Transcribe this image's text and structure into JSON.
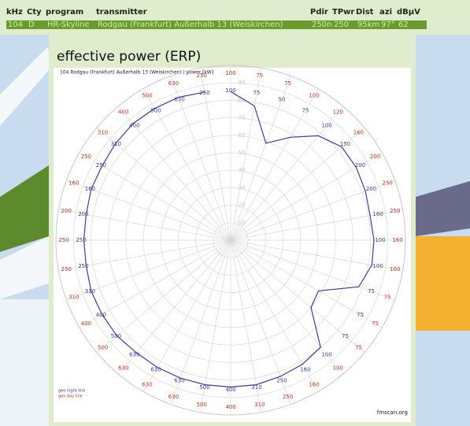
{
  "header": {
    "columns": [
      "kHz",
      "Cty",
      "program",
      "transmitter",
      "Pdir",
      "TPwr",
      "Dist",
      "azi",
      "dBµV"
    ],
    "row": [
      "104",
      "D",
      "HR-Skyline",
      "Rodgau (Frankfurt) Außerhalb 13 (Weiskirchen)",
      "250n",
      "250",
      "95km",
      "97°",
      "62"
    ]
  },
  "chart_data": {
    "type": "polar",
    "title": "effective power (ERP)",
    "subtitle": "104 Rodgau (Frankfurt) Außerhalb 13 (Weiskirchen) | power [kW]",
    "x": [
      0,
      10,
      20,
      30,
      40,
      50,
      60,
      70,
      80,
      90,
      100,
      110,
      120,
      130,
      140,
      150,
      160,
      170,
      180,
      190,
      200,
      210,
      220,
      230,
      240,
      250,
      260,
      270,
      280,
      290,
      300,
      310,
      320,
      330,
      340,
      350
    ],
    "series": [
      {
        "name": "geo night line",
        "color": "#3c3ca0",
        "values": [
          85,
          78,
          59,
          68,
          78,
          83,
          83,
          82,
          81,
          82,
          82,
          78,
          58,
          60,
          80,
          82,
          83,
          84,
          84,
          84,
          84,
          84,
          84,
          85,
          85,
          85,
          84,
          84,
          84,
          85,
          85,
          86,
          87,
          87,
          87,
          86
        ]
      }
    ],
    "legend_extra": [
      {
        "name": "geo day line",
        "color": "#d03020"
      }
    ],
    "inner_labels": [
      "100",
      "75",
      "50",
      "75",
      "100",
      "150",
      "200",
      "200",
      "160",
      "100",
      "100",
      "75",
      "75",
      "75",
      "100",
      "160",
      "250",
      "310",
      "400",
      "500",
      "630",
      "630",
      "630",
      "500",
      "400",
      "310",
      "250",
      "250",
      "200",
      "160",
      "250",
      "310",
      "400",
      "500",
      "630",
      "250"
    ],
    "outer_labels": [
      "100",
      "75",
      "75",
      "100",
      "120",
      "160",
      "200",
      "250",
      "250",
      "160",
      "100",
      "75",
      "75",
      "75",
      "100",
      "160",
      "250",
      "310",
      "400",
      "500",
      "630",
      "630",
      "630",
      "500",
      "400",
      "310",
      "250",
      "250",
      "200",
      "160",
      "250",
      "310",
      "400",
      "500",
      "630",
      "250"
    ],
    "rlim": [
      0,
      100
    ],
    "rticks": [
      10,
      20,
      30,
      40,
      50,
      60,
      70,
      80,
      90
    ],
    "source": "fmscan.org"
  }
}
